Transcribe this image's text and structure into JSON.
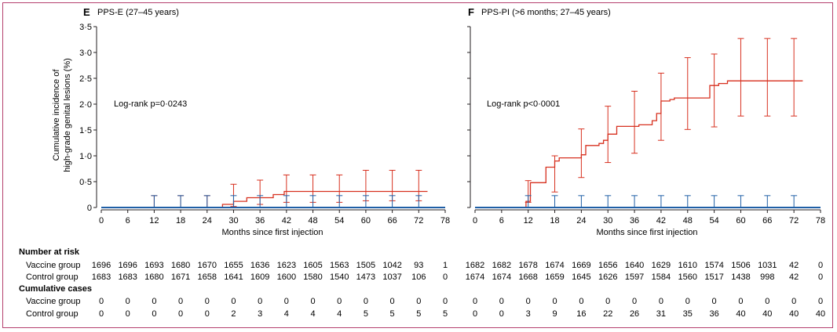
{
  "colors": {
    "vaccine": "#1f5fa6",
    "control": "#d7301f",
    "axis": "#231f20",
    "frame": "#b5406e"
  },
  "y_axis_label_line1": "Cumulative incidence of",
  "y_axis_label_line2": "high-grade genital lesions (%)",
  "table": {
    "number_at_risk_header": "Number at risk",
    "cumulative_cases_header": "Cumulative cases",
    "vaccine_label": "Vaccine group",
    "control_label": "Control group"
  },
  "chart_data": [
    {
      "type": "line",
      "letter": "E",
      "title": "PPS-E (27–45 years)",
      "annotation": "Log-rank p=0·0243",
      "xlabel": "Months since first injection",
      "ylabel": "Cumulative incidence of high-grade genital lesions (%)",
      "xlim": [
        0,
        78
      ],
      "ylim": [
        0,
        3.5
      ],
      "x_ticks": [
        0,
        6,
        12,
        18,
        24,
        30,
        36,
        42,
        48,
        54,
        60,
        66,
        72,
        78
      ],
      "x_tick_labels": [
        "0",
        "6",
        "12",
        "18",
        "24",
        "30",
        "36",
        "42",
        "48",
        "54",
        "60",
        "66",
        "72",
        "78"
      ],
      "y_ticks": [
        0,
        0.5,
        1.0,
        1.5,
        2.0,
        2.5,
        3.0,
        3.5
      ],
      "y_tick_labels": [
        "0",
        "0·5",
        "1·0",
        "1·5",
        "2·0",
        "2·5",
        "3·0",
        "3·5"
      ],
      "series": [
        {
          "name": "Vaccine group",
          "x": [
            0,
            78
          ],
          "y": [
            0,
            0
          ],
          "errorbars": [
            {
              "x": 12,
              "y": 0,
              "lo": 0,
              "hi": 0.23
            },
            {
              "x": 18,
              "y": 0,
              "lo": 0,
              "hi": 0.23
            },
            {
              "x": 24,
              "y": 0,
              "lo": 0,
              "hi": 0.23
            },
            {
              "x": 30,
              "y": 0,
              "lo": 0,
              "hi": 0.23
            },
            {
              "x": 36,
              "y": 0,
              "lo": 0,
              "hi": 0.23
            },
            {
              "x": 42,
              "y": 0,
              "lo": 0,
              "hi": 0.23
            },
            {
              "x": 48,
              "y": 0,
              "lo": 0,
              "hi": 0.23
            },
            {
              "x": 54,
              "y": 0,
              "lo": 0,
              "hi": 0.23
            },
            {
              "x": 60,
              "y": 0,
              "lo": 0,
              "hi": 0.23
            },
            {
              "x": 66,
              "y": 0,
              "lo": 0,
              "hi": 0.23
            },
            {
              "x": 72,
              "y": 0,
              "lo": 0,
              "hi": 0.23
            }
          ]
        },
        {
          "name": "Control group",
          "x": [
            0,
            27.5,
            27.5,
            30,
            30,
            33,
            33,
            39,
            39,
            41.5,
            41.5,
            57,
            57,
            74
          ],
          "y": [
            0,
            0,
            0.06,
            0.06,
            0.12,
            0.12,
            0.19,
            0.19,
            0.25,
            0.25,
            0.31,
            0.31,
            0.31,
            0.31
          ],
          "errorbars": [
            {
              "x": 12,
              "y": 0,
              "lo": 0,
              "hi": 0.23
            },
            {
              "x": 18,
              "y": 0,
              "lo": 0,
              "hi": 0.23
            },
            {
              "x": 24,
              "y": 0,
              "lo": 0,
              "hi": 0.23
            },
            {
              "x": 30,
              "y": 0.12,
              "lo": 0.02,
              "hi": 0.45
            },
            {
              "x": 36,
              "y": 0.19,
              "lo": 0.06,
              "hi": 0.53
            },
            {
              "x": 42,
              "y": 0.25,
              "lo": 0.1,
              "hi": 0.63
            },
            {
              "x": 48,
              "y": 0.25,
              "lo": 0.1,
              "hi": 0.63
            },
            {
              "x": 54,
              "y": 0.25,
              "lo": 0.1,
              "hi": 0.63
            },
            {
              "x": 60,
              "y": 0.31,
              "lo": 0.13,
              "hi": 0.72
            },
            {
              "x": 66,
              "y": 0.31,
              "lo": 0.13,
              "hi": 0.72
            },
            {
              "x": 72,
              "y": 0.31,
              "lo": 0.13,
              "hi": 0.72
            }
          ]
        }
      ],
      "number_at_risk": {
        "vaccine": [
          "1696",
          "1696",
          "1693",
          "1680",
          "1670",
          "1655",
          "1636",
          "1623",
          "1605",
          "1563",
          "1505",
          "1042",
          "93",
          "1"
        ],
        "control": [
          "1683",
          "1683",
          "1680",
          "1671",
          "1658",
          "1641",
          "1609",
          "1600",
          "1580",
          "1540",
          "1473",
          "1037",
          "106",
          "0"
        ]
      },
      "cumulative_cases": {
        "vaccine": [
          "0",
          "0",
          "0",
          "0",
          "0",
          "0",
          "0",
          "0",
          "0",
          "0",
          "0",
          "0",
          "0",
          "0"
        ],
        "control": [
          "0",
          "0",
          "0",
          "0",
          "0",
          "2",
          "3",
          "4",
          "4",
          "4",
          "5",
          "5",
          "5",
          "5"
        ]
      }
    },
    {
      "type": "line",
      "letter": "F",
      "title": "PPS-PI (>6 months; 27–45 years)",
      "annotation": "Log-rank p<0·0001",
      "xlabel": "Months since first injection",
      "ylabel": "",
      "xlim": [
        0,
        78
      ],
      "ylim": [
        0,
        3.5
      ],
      "x_ticks": [
        0,
        6,
        12,
        18,
        24,
        30,
        36,
        42,
        48,
        54,
        60,
        66,
        72,
        78
      ],
      "x_tick_labels": [
        "0",
        "6",
        "12",
        "18",
        "24",
        "30",
        "36",
        "42",
        "48",
        "54",
        "60",
        "66",
        "72",
        "78"
      ],
      "y_ticks": [
        0,
        0.5,
        1.0,
        1.5,
        2.0,
        2.5,
        3.0,
        3.5
      ],
      "y_tick_labels": [],
      "series": [
        {
          "name": "Vaccine group",
          "x": [
            0,
            78
          ],
          "y": [
            0,
            0
          ],
          "errorbars": [
            {
              "x": 12,
              "y": 0,
              "lo": 0,
              "hi": 0.23
            },
            {
              "x": 18,
              "y": 0,
              "lo": 0,
              "hi": 0.23
            },
            {
              "x": 24,
              "y": 0,
              "lo": 0,
              "hi": 0.23
            },
            {
              "x": 30,
              "y": 0,
              "lo": 0,
              "hi": 0.23
            },
            {
              "x": 36,
              "y": 0,
              "lo": 0,
              "hi": 0.23
            },
            {
              "x": 42,
              "y": 0,
              "lo": 0,
              "hi": 0.23
            },
            {
              "x": 48,
              "y": 0,
              "lo": 0,
              "hi": 0.23
            },
            {
              "x": 54,
              "y": 0,
              "lo": 0,
              "hi": 0.23
            },
            {
              "x": 60,
              "y": 0,
              "lo": 0,
              "hi": 0.23
            },
            {
              "x": 66,
              "y": 0,
              "lo": 0,
              "hi": 0.23
            },
            {
              "x": 72,
              "y": 0,
              "lo": 0,
              "hi": 0.23
            }
          ]
        },
        {
          "name": "Control group",
          "x": [
            0,
            11.5,
            11.5,
            12.5,
            12.5,
            16,
            16,
            18,
            18,
            19,
            19,
            24,
            24,
            25,
            25,
            28,
            28,
            29,
            29,
            30,
            30,
            32,
            32,
            37,
            37,
            40,
            40,
            41,
            41,
            42,
            42,
            44,
            44,
            45,
            45,
            53,
            53,
            55,
            55,
            57,
            57,
            74
          ],
          "y": [
            0,
            0,
            0.12,
            0.12,
            0.48,
            0.48,
            0.78,
            0.78,
            0.9,
            0.9,
            0.96,
            0.96,
            1.02,
            1.02,
            1.2,
            1.2,
            1.24,
            1.24,
            1.3,
            1.3,
            1.42,
            1.42,
            1.57,
            1.57,
            1.6,
            1.6,
            1.68,
            1.68,
            1.82,
            1.82,
            2.06,
            2.06,
            2.09,
            2.09,
            2.12,
            2.12,
            2.36,
            2.36,
            2.4,
            2.4,
            2.45,
            2.45
          ],
          "errorbars": [
            {
              "x": 12,
              "y": 0.48,
              "lo": 0.1,
              "hi": 0.52
            },
            {
              "x": 18,
              "y": 0.96,
              "lo": 0.3,
              "hi": 1.0
            },
            {
              "x": 24,
              "y": 0.96,
              "lo": 0.58,
              "hi": 1.52
            },
            {
              "x": 30,
              "y": 1.2,
              "lo": 0.87,
              "hi": 1.96
            },
            {
              "x": 36,
              "y": 1.57,
              "lo": 1.05,
              "hi": 2.25
            },
            {
              "x": 42,
              "y": 2.06,
              "lo": 1.3,
              "hi": 2.6
            },
            {
              "x": 48,
              "y": 2.12,
              "lo": 1.51,
              "hi": 2.9
            },
            {
              "x": 54,
              "y": 2.36,
              "lo": 1.56,
              "hi": 2.97
            },
            {
              "x": 60,
              "y": 2.45,
              "lo": 1.77,
              "hi": 3.27
            },
            {
              "x": 66,
              "y": 2.45,
              "lo": 1.77,
              "hi": 3.27
            },
            {
              "x": 72,
              "y": 2.45,
              "lo": 1.77,
              "hi": 3.27
            }
          ]
        }
      ],
      "number_at_risk": {
        "vaccine": [
          "1682",
          "1682",
          "1678",
          "1674",
          "1669",
          "1656",
          "1640",
          "1629",
          "1610",
          "1574",
          "1506",
          "1031",
          "42",
          "0"
        ],
        "control": [
          "1674",
          "1674",
          "1668",
          "1659",
          "1645",
          "1626",
          "1597",
          "1584",
          "1560",
          "1517",
          "1438",
          "998",
          "42",
          "0"
        ]
      },
      "cumulative_cases": {
        "vaccine": [
          "0",
          "0",
          "0",
          "0",
          "0",
          "0",
          "0",
          "0",
          "0",
          "0",
          "0",
          "0",
          "0",
          "0"
        ],
        "control": [
          "0",
          "0",
          "3",
          "9",
          "16",
          "22",
          "26",
          "31",
          "35",
          "36",
          "40",
          "40",
          "40",
          "40"
        ]
      }
    }
  ]
}
